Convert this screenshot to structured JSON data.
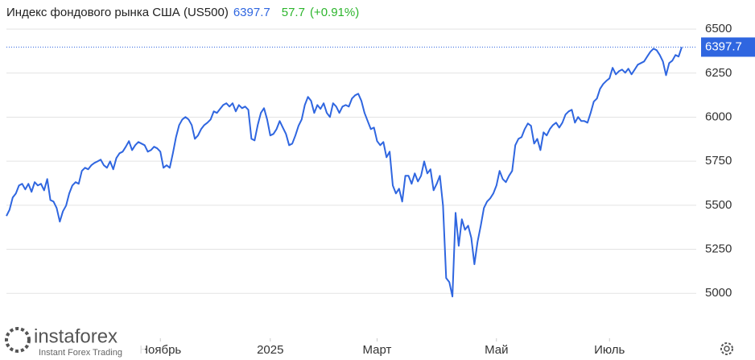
{
  "chart_data": {
    "type": "line",
    "title": "Индекс фондового рынка США (US500)",
    "change": 57.7,
    "change_pct": {
      "value": 0.91,
      "label": "(+0.91%)"
    },
    "color": "#2f66e0",
    "change_color": "#2db52d",
    "grid": true,
    "watermark": {
      "name": "instaforex",
      "tagline": "Instant Forex Trading"
    },
    "ylim": [
      4745,
      6665
    ],
    "yticks": [
      5000,
      5250,
      5500,
      5750,
      6000,
      6250,
      6500
    ],
    "xlim": [
      0,
      215
    ],
    "xticks": [
      {
        "value": 49,
        "label": "Ноябрь"
      },
      {
        "value": 84,
        "label": "2025"
      },
      {
        "value": 118,
        "label": "Март"
      },
      {
        "value": 156,
        "label": "Май"
      },
      {
        "value": 192,
        "label": "Июль"
      }
    ],
    "values": [
      5439,
      5475,
      5544,
      5567,
      5612,
      5622,
      5590,
      5622,
      5576,
      5631,
      5612,
      5622,
      5585,
      5649,
      5530,
      5521,
      5484,
      5407,
      5466,
      5498,
      5567,
      5612,
      5631,
      5622,
      5695,
      5713,
      5704,
      5727,
      5740,
      5749,
      5759,
      5727,
      5713,
      5749,
      5704,
      5768,
      5795,
      5804,
      5832,
      5864,
      5813,
      5841,
      5859,
      5850,
      5841,
      5804,
      5813,
      5832,
      5823,
      5804,
      5713,
      5727,
      5713,
      5795,
      5887,
      5955,
      5987,
      6001,
      5987,
      5955,
      5877,
      5896,
      5932,
      5955,
      5969,
      5987,
      6033,
      6024,
      6047,
      6069,
      6079,
      6060,
      6079,
      6033,
      6069,
      6051,
      6060,
      6042,
      5877,
      5868,
      5955,
      6024,
      6051,
      5987,
      5896,
      5905,
      5932,
      5978,
      5941,
      5905,
      5841,
      5850,
      5896,
      5951,
      5987,
      6069,
      6115,
      6092,
      6024,
      6069,
      6047,
      6079,
      6024,
      6001,
      6079,
      6060,
      6024,
      6060,
      6069,
      6060,
      6106,
      6124,
      6133,
      6092,
      6024,
      5978,
      5932,
      5941,
      5864,
      5841,
      5859,
      5772,
      5804,
      5612,
      5567,
      5594,
      5521,
      5667,
      5667,
      5622,
      5681,
      5635,
      5667,
      5749,
      5681,
      5704,
      5585,
      5622,
      5667,
      5498,
      5087,
      5064,
      4982,
      5457,
      5270,
      5420,
      5361,
      5384,
      5315,
      5165,
      5292,
      5384,
      5484,
      5521,
      5539,
      5567,
      5612,
      5695,
      5649,
      5631,
      5667,
      5695,
      5841,
      5877,
      5887,
      5932,
      5964,
      5951,
      5850,
      5877,
      5813,
      5914,
      5896,
      5932,
      5955,
      5969,
      5941,
      5969,
      6015,
      6033,
      6042,
      5969,
      6001,
      5978,
      5978,
      5969,
      6024,
      6088,
      6106,
      6161,
      6188,
      6206,
      6220,
      6280,
      6243,
      6261,
      6270,
      6252,
      6275,
      6243,
      6270,
      6298,
      6307,
      6316,
      6344,
      6371,
      6389,
      6380,
      6353,
      6316,
      6238,
      6307,
      6321,
      6353,
      6344,
      6397.7
    ]
  }
}
